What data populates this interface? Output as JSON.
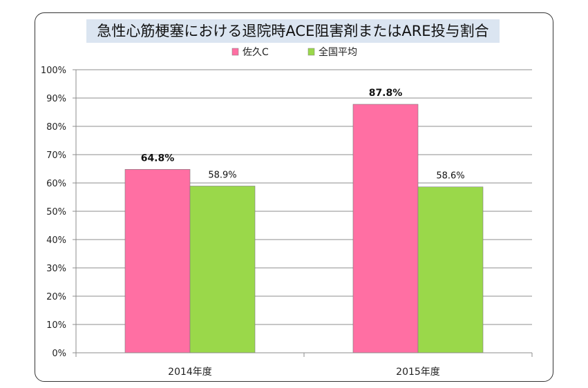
{
  "chart_data": {
    "type": "bar",
    "title": "急性心筋梗塞における退院時ACE阻害剤またはARE投与割合",
    "categories": [
      "2014年度",
      "2015年度"
    ],
    "series": [
      {
        "name": "佐久C",
        "values": [
          64.8,
          87.8
        ],
        "labels": [
          "64.8%",
          "87.8%"
        ],
        "color": "#ff6fa3",
        "label_bold": true
      },
      {
        "name": "全国平均",
        "values": [
          58.9,
          58.6
        ],
        "labels": [
          "58.9%",
          "58.6%"
        ],
        "color": "#9ad84a",
        "label_bold": false
      }
    ],
    "ylim": [
      0,
      100
    ],
    "yticks": [
      0,
      10,
      20,
      30,
      40,
      50,
      60,
      70,
      80,
      90,
      100
    ],
    "ytick_labels": [
      "0%",
      "10%",
      "20%",
      "30%",
      "40%",
      "50%",
      "60%",
      "70%",
      "80%",
      "90%",
      "100%"
    ],
    "grid": true,
    "legend_position": "top"
  }
}
